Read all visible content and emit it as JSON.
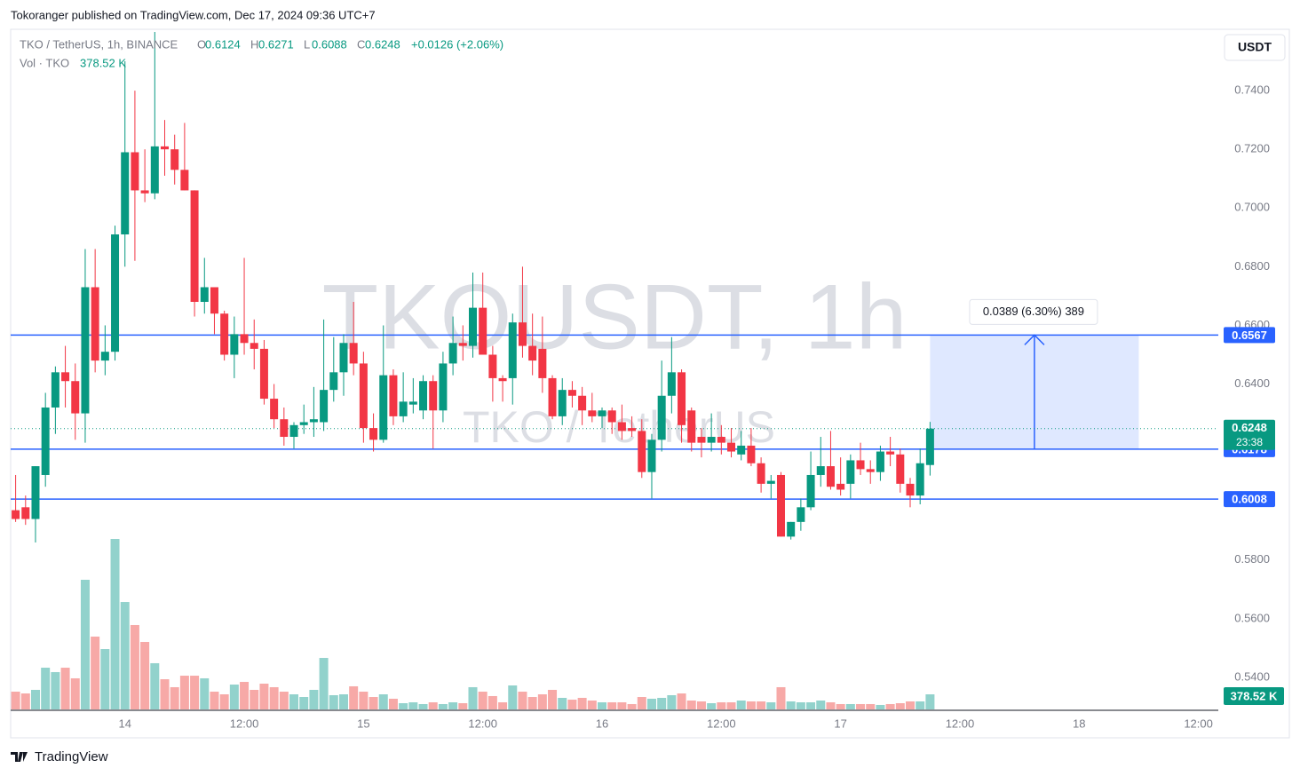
{
  "header": "Tokoranger published on TradingView.com, Dec 17, 2024 09:36 UTC+7",
  "brand": "TradingView",
  "chart_data": {
    "type": "candlestick",
    "symbol": "TKO / TetherUS, 1h, BINANCE",
    "legend_labels": [
      "O",
      "H",
      "L",
      "C"
    ],
    "change": "+0.0126 (+2.06%)",
    "volume_title": "Vol · TKO",
    "volume_label": "378.52 K",
    "currency": "USDT",
    "watermark": "TKOUSDT, 1h",
    "watermark_sub": "TKO / TetherUS",
    "countdown": "23:38",
    "colors": {
      "up": "#089981",
      "down": "#f23645",
      "up_volume": "#92d2cc",
      "down_volume": "#f7a9a7",
      "level": "#2962ff"
    },
    "open": [
      0.597,
      0.598,
      0.594,
      0.609,
      0.632,
      0.644,
      0.641,
      0.63,
      0.673,
      0.648,
      0.651,
      0.691,
      0.719,
      0.706,
      0.705,
      0.721,
      0.72,
      0.713,
      0.706,
      0.668,
      0.673,
      0.664,
      0.65,
      0.657,
      0.654,
      0.652,
      0.635,
      0.628,
      0.622,
      0.626,
      0.627,
      0.627,
      0.638,
      0.644,
      0.654,
      0.647,
      0.625,
      0.621,
      0.643,
      0.629,
      0.633,
      0.631,
      0.641,
      0.631,
      0.647,
      0.654,
      0.653,
      0.666,
      0.65,
      0.642,
      0.642,
      0.661,
      0.653,
      0.652,
      0.642,
      0.629,
      0.638,
      0.636,
      0.631,
      0.629,
      0.631,
      0.627,
      0.625,
      0.624,
      0.61,
      0.621,
      0.636,
      0.644,
      0.631,
      0.622,
      0.62,
      0.622,
      0.62,
      0.616,
      0.619,
      0.613,
      0.606,
      0.609,
      0.588,
      0.593,
      0.598,
      0.609,
      0.612,
      0.606,
      0.606,
      0.614,
      0.611,
      0.61,
      0.617,
      0.616,
      0.606,
      0.602,
      0.6124
    ],
    "high": [
      0.609,
      0.602,
      0.612,
      0.637,
      0.646,
      0.653,
      0.647,
      0.686,
      0.686,
      0.66,
      0.694,
      0.75,
      0.74,
      0.72,
      0.76,
      0.73,
      0.725,
      0.729,
      0.706,
      0.683,
      0.673,
      0.665,
      0.663,
      0.683,
      0.662,
      0.655,
      0.64,
      0.632,
      0.627,
      0.633,
      0.639,
      0.662,
      0.656,
      0.657,
      0.668,
      0.651,
      0.63,
      0.66,
      0.645,
      0.644,
      0.642,
      0.643,
      0.643,
      0.651,
      0.663,
      0.66,
      0.678,
      0.678,
      0.653,
      0.643,
      0.664,
      0.68,
      0.664,
      0.663,
      0.643,
      0.642,
      0.641,
      0.639,
      0.637,
      0.632,
      0.632,
      0.633,
      0.629,
      0.628,
      0.623,
      0.648,
      0.656,
      0.645,
      0.632,
      0.625,
      0.63,
      0.626,
      0.625,
      0.624,
      0.625,
      0.615,
      0.609,
      0.61,
      0.593,
      0.601,
      0.617,
      0.622,
      0.624,
      0.615,
      0.616,
      0.62,
      0.614,
      0.619,
      0.622,
      0.618,
      0.608,
      0.618,
      0.6271
    ],
    "low": [
      0.593,
      0.592,
      0.586,
      0.605,
      0.623,
      0.632,
      0.621,
      0.62,
      0.644,
      0.643,
      0.648,
      0.68,
      0.682,
      0.702,
      0.703,
      0.711,
      0.708,
      0.706,
      0.663,
      0.664,
      0.657,
      0.648,
      0.642,
      0.65,
      0.645,
      0.633,
      0.625,
      0.619,
      0.618,
      0.623,
      0.622,
      0.624,
      0.634,
      0.636,
      0.643,
      0.62,
      0.617,
      0.62,
      0.626,
      0.627,
      0.63,
      0.628,
      0.618,
      0.627,
      0.643,
      0.648,
      0.649,
      0.65,
      0.634,
      0.634,
      0.633,
      0.649,
      0.643,
      0.637,
      0.628,
      0.626,
      0.632,
      0.626,
      0.627,
      0.625,
      0.623,
      0.621,
      0.622,
      0.608,
      0.601,
      0.617,
      0.63,
      0.62,
      0.617,
      0.615,
      0.617,
      0.616,
      0.615,
      0.614,
      0.612,
      0.603,
      0.601,
      0.588,
      0.587,
      0.59,
      0.597,
      0.605,
      0.604,
      0.602,
      0.601,
      0.609,
      0.606,
      0.607,
      0.612,
      0.603,
      0.598,
      0.599,
      0.6088
    ],
    "close": [
      0.594,
      0.594,
      0.612,
      0.632,
      0.644,
      0.641,
      0.63,
      0.673,
      0.648,
      0.651,
      0.691,
      0.719,
      0.706,
      0.705,
      0.721,
      0.72,
      0.713,
      0.706,
      0.668,
      0.673,
      0.664,
      0.65,
      0.657,
      0.654,
      0.652,
      0.635,
      0.628,
      0.622,
      0.626,
      0.627,
      0.628,
      0.638,
      0.644,
      0.654,
      0.647,
      0.625,
      0.621,
      0.643,
      0.629,
      0.634,
      0.634,
      0.641,
      0.631,
      0.647,
      0.654,
      0.653,
      0.666,
      0.65,
      0.642,
      0.641,
      0.661,
      0.653,
      0.648,
      0.642,
      0.629,
      0.638,
      0.636,
      0.631,
      0.629,
      0.631,
      0.627,
      0.624,
      0.624,
      0.61,
      0.621,
      0.636,
      0.644,
      0.626,
      0.62,
      0.62,
      0.622,
      0.62,
      0.617,
      0.619,
      0.613,
      0.606,
      0.607,
      0.588,
      0.593,
      0.598,
      0.609,
      0.612,
      0.605,
      0.604,
      0.614,
      0.611,
      0.61,
      0.617,
      0.616,
      0.606,
      0.602,
      0.613,
      0.6248
    ],
    "volume": [
      446,
      401,
      491,
      1048,
      937,
      1048,
      781,
      3256,
      1829,
      1516,
      4282,
      2698,
      2119,
      1695,
      1160,
      758,
      558,
      847,
      847,
      781,
      446,
      379,
      624,
      691,
      491,
      647,
      558,
      446,
      379,
      312,
      491,
      1293,
      357,
      379,
      580,
      446,
      312,
      379,
      268,
      156,
      178,
      134,
      178,
      134,
      178,
      156,
      558,
      446,
      335,
      178,
      602,
      446,
      312,
      379,
      491,
      290,
      245,
      290,
      223,
      178,
      178,
      178,
      134,
      312,
      268,
      290,
      357,
      401,
      223,
      201,
      156,
      178,
      178,
      223,
      201,
      201,
      178,
      558,
      201,
      178,
      178,
      223,
      178,
      134,
      134,
      134,
      134,
      112,
      134,
      156,
      201,
      201,
      378.52
    ],
    "xlim": [
      -0.5,
      121
    ],
    "xticks": [
      {
        "value": 11,
        "label": "14"
      },
      {
        "value": 23,
        "label": "12:00"
      },
      {
        "value": 35,
        "label": "15"
      },
      {
        "value": 47,
        "label": "12:00"
      },
      {
        "value": 59,
        "label": "16"
      },
      {
        "value": 71,
        "label": "12:00"
      },
      {
        "value": 83,
        "label": "17"
      },
      {
        "value": 95,
        "label": "12:00"
      },
      {
        "value": 107,
        "label": "18"
      },
      {
        "value": 119,
        "label": "12:00"
      }
    ],
    "ylim": [
      0.5288,
      0.7603
    ],
    "yticks": [
      {
        "value": 0.74,
        "label": "0.7400"
      },
      {
        "value": 0.72,
        "label": "0.7200"
      },
      {
        "value": 0.7,
        "label": "0.7000"
      },
      {
        "value": 0.68,
        "label": "0.6800"
      },
      {
        "value": 0.66,
        "label": "0.6600"
      },
      {
        "value": 0.64,
        "label": "0.6400"
      },
      {
        "value": 0.58,
        "label": "0.5800"
      },
      {
        "value": 0.56,
        "label": "0.5600"
      },
      {
        "value": 0.54,
        "label": "0.5400"
      }
    ],
    "levels": [
      0.6567,
      0.6178,
      0.6008
    ],
    "measure": {
      "start": 92,
      "end": 113,
      "low": 0.6178,
      "high": 0.6567,
      "label": "0.0389 (6.30%) 389"
    }
  }
}
